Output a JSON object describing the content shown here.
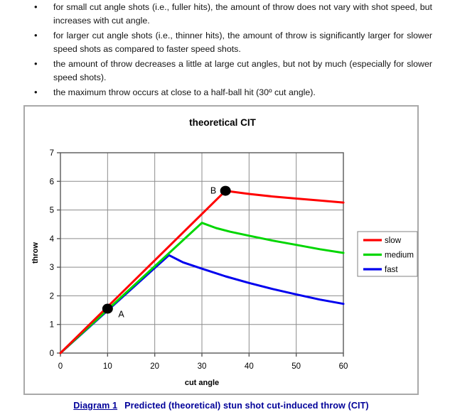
{
  "document": {
    "bullet_char": "•",
    "bullets": [
      "for small cut angle shots (i.e., fuller hits), the amount of throw does not vary with shot speed, but increases with cut angle.",
      "for larger cut angle shots (i.e., thinner hits), the amount of throw is significantly larger for slower speed shots as compared to faster speed shots.",
      "the amount of throw decreases a little at large cut angles, but not by much (especially for slower speed shots).",
      "the maximum throw occurs at close to a half-ball hit (30º cut angle)."
    ],
    "caption": {
      "label": "Diagram 1",
      "text": "Predicted (theoretical) stun shot cut-induced throw (CIT)",
      "color": "#000099"
    }
  },
  "chart_data": {
    "type": "line",
    "title": "theoretical CIT",
    "xlabel": "cut angle",
    "ylabel": "throw",
    "xlim": [
      0,
      60
    ],
    "ylim": [
      0,
      7
    ],
    "xticks": [
      0,
      10,
      20,
      30,
      40,
      50,
      60
    ],
    "yticks": [
      0,
      1,
      2,
      3,
      4,
      5,
      6,
      7
    ],
    "grid": true,
    "legend_position": "right",
    "grid_color": "#8c8c8c",
    "axis_color": "#595959",
    "series": [
      {
        "name": "slow",
        "color": "#ff0000",
        "points": [
          [
            0,
            0
          ],
          [
            35,
            5.67
          ],
          [
            40,
            5.56
          ],
          [
            45,
            5.47
          ],
          [
            50,
            5.4
          ],
          [
            55,
            5.33
          ],
          [
            60,
            5.26
          ]
        ]
      },
      {
        "name": "medium",
        "color": "#00d600",
        "points": [
          [
            0,
            0
          ],
          [
            30,
            4.55
          ],
          [
            33,
            4.37
          ],
          [
            36,
            4.24
          ],
          [
            40,
            4.1
          ],
          [
            45,
            3.93
          ],
          [
            50,
            3.78
          ],
          [
            55,
            3.63
          ],
          [
            60,
            3.5
          ]
        ]
      },
      {
        "name": "fast",
        "color": "#0000ee",
        "points": [
          [
            0,
            0
          ],
          [
            23,
            3.42
          ],
          [
            26,
            3.17
          ],
          [
            30,
            2.95
          ],
          [
            35,
            2.68
          ],
          [
            40,
            2.45
          ],
          [
            45,
            2.24
          ],
          [
            50,
            2.05
          ],
          [
            55,
            1.87
          ],
          [
            60,
            1.72
          ]
        ]
      }
    ],
    "annotations": [
      {
        "label": "A",
        "x": 10,
        "y": 1.55,
        "side": "right"
      },
      {
        "label": "B",
        "x": 35,
        "y": 5.67,
        "side": "left"
      }
    ]
  }
}
